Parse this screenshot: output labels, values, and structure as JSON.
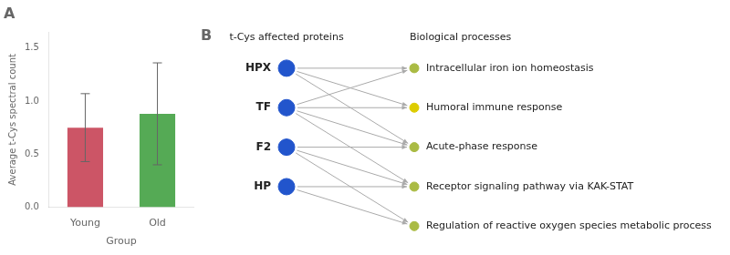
{
  "chart_data": [
    {
      "type": "bar",
      "title": "A",
      "categories": [
        "Young",
        "Old"
      ],
      "values": [
        0.75,
        0.88
      ],
      "errors": [
        0.32,
        0.48
      ],
      "colors": [
        "#cc5566",
        "#55aa55"
      ],
      "xlabel": "Group",
      "ylabel": "Average t-Cys spectral count",
      "ylim": [
        0,
        1.65
      ],
      "yticks": [
        {
          "value": 0,
          "label": "0.0"
        },
        0.5,
        {
          "value": 1,
          "label": "1.0"
        },
        1.5
      ],
      "grid": false
    },
    {
      "type": "network",
      "title": "B",
      "series": [
        {
          "name": "t-Cys affected proteins",
          "color": "#2255cc",
          "values": [
            "HPX",
            "TF",
            "F2",
            "HP"
          ]
        },
        {
          "name": "Biological processes",
          "colors": [
            "#aabb44",
            "#ddcc00",
            "#aabb44",
            "#aabb44",
            "#aabb44"
          ],
          "values": [
            "Intracellular iron ion homeostasis",
            "Humoral immune response",
            "Acute-phase response",
            "Receptor signaling pathway via KAK-STAT",
            "Regulation of reactive oxygen species metabolic process"
          ]
        }
      ],
      "links": [
        [
          0,
          0
        ],
        [
          0,
          1
        ],
        [
          0,
          2
        ],
        [
          1,
          0
        ],
        [
          1,
          1
        ],
        [
          1,
          2
        ],
        [
          1,
          3
        ],
        [
          2,
          2
        ],
        [
          2,
          3
        ],
        [
          2,
          4
        ],
        [
          3,
          3
        ],
        [
          3,
          4
        ]
      ]
    }
  ]
}
